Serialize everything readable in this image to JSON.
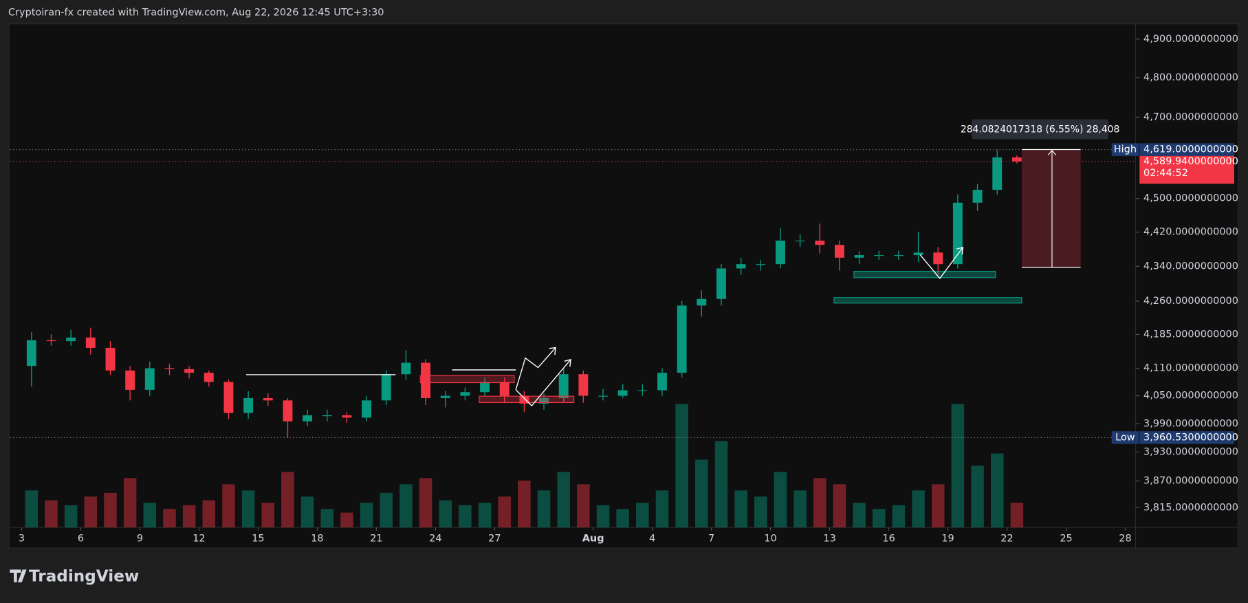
{
  "header": "Cryptoiran-fx created with TradingView.com, Aug 22, 2026 12:45 UTC+3:30",
  "logo": "TradingView",
  "chart_data": {
    "type": "candlestick",
    "log_scale": true,
    "up_color": "#089981",
    "down_color": "#f23645",
    "ylim": [
      3775,
      4940
    ],
    "yticks": [
      {
        "value": 4900,
        "label": "4,900.0000000000"
      },
      {
        "value": 4800,
        "label": "4,800.0000000000"
      },
      {
        "value": 4700,
        "label": "4,700.0000000000"
      },
      {
        "value": 4500,
        "label": "4,500.0000000000"
      },
      {
        "value": 4420,
        "label": "4,420.0000000000"
      },
      {
        "value": 4340,
        "label": "4,340.0000000000"
      },
      {
        "value": 4260,
        "label": "4,260.0000000000"
      },
      {
        "value": 4185,
        "label": "4,185.0000000000"
      },
      {
        "value": 4110,
        "label": "4,110.0000000000"
      },
      {
        "value": 4050,
        "label": "4,050.0000000000"
      },
      {
        "value": 3990,
        "label": "3,990.0000000000"
      },
      {
        "value": 3930,
        "label": "3,930.0000000000"
      },
      {
        "value": 3870,
        "label": "3,870.0000000000"
      },
      {
        "value": 3815,
        "label": "3,815.0000000000"
      }
    ],
    "xlim": [
      -0.6,
      56.44
    ],
    "xticks": [
      {
        "value": 0,
        "label": "3"
      },
      {
        "value": 3,
        "label": "6"
      },
      {
        "value": 6,
        "label": "9"
      },
      {
        "value": 9,
        "label": "12"
      },
      {
        "value": 12,
        "label": "15"
      },
      {
        "value": 15,
        "label": "18"
      },
      {
        "value": 18,
        "label": "21"
      },
      {
        "value": 21,
        "label": "24"
      },
      {
        "value": 24,
        "label": "27"
      },
      {
        "value": 29,
        "label": "Aug"
      },
      {
        "value": 32,
        "label": "4"
      },
      {
        "value": 35,
        "label": "7"
      },
      {
        "value": 38,
        "label": "10"
      },
      {
        "value": 41,
        "label": "13"
      },
      {
        "value": 44,
        "label": "16"
      },
      {
        "value": 47,
        "label": "19"
      },
      {
        "value": 50,
        "label": "22"
      },
      {
        "value": 53,
        "label": "25"
      },
      {
        "value": 56,
        "label": "28"
      }
    ],
    "x": [
      0.5,
      1.5,
      2.5,
      3.5,
      4.5,
      5.5,
      6.5,
      7.5,
      8.5,
      9.5,
      10.5,
      11.5,
      12.5,
      13.5,
      14.5,
      15.5,
      16.5,
      17.5,
      18.5,
      19.5,
      20.5,
      21.5,
      22.5,
      23.5,
      24.5,
      25.5,
      26.5,
      27.5,
      28.5,
      29.5,
      30.5,
      31.5,
      32.5,
      33.5,
      34.5,
      35.5,
      36.5,
      37.5,
      38.5,
      39.5,
      40.5,
      41.5,
      42.5,
      43.5,
      44.5,
      45.5,
      46.5,
      47.5,
      48.5,
      49.5,
      50.5
    ],
    "open": [
      4115,
      4172,
      4170,
      4178,
      4155,
      4105,
      4063,
      4110,
      4108,
      4100,
      4080,
      4013,
      4045,
      4040,
      3995,
      4008,
      4008,
      4003,
      4040,
      4097,
      4122,
      4045,
      4050,
      4058,
      4080,
      4050,
      4033,
      4045,
      4097,
      4050,
      4050,
      4062,
      4062,
      4100,
      4250,
      4265,
      4335,
      4345,
      4345,
      4400,
      4400,
      4390,
      4360,
      4366,
      4366,
      4366,
      4372,
      4345,
      4490,
      4521,
      4600
    ],
    "high": [
      4190,
      4185,
      4195,
      4200,
      4170,
      4115,
      4125,
      4120,
      4115,
      4105,
      4085,
      4060,
      4055,
      4045,
      4020,
      4020,
      4015,
      4050,
      4105,
      4150,
      4130,
      4060,
      4068,
      4090,
      4090,
      4060,
      4055,
      4110,
      4105,
      4065,
      4075,
      4075,
      4110,
      4260,
      4285,
      4345,
      4360,
      4355,
      4430,
      4415,
      4440,
      4400,
      4375,
      4376,
      4376,
      4420,
      4385,
      4510,
      4535,
      4619,
      4605
    ],
    "low": [
      4070,
      4160,
      4160,
      4140,
      4095,
      4040,
      4050,
      4095,
      4088,
      4070,
      4000,
      4000,
      4028,
      3960.53,
      3985,
      3995,
      3992,
      3995,
      4030,
      4085,
      4030,
      4025,
      4040,
      4050,
      4035,
      4015,
      4020,
      4035,
      4035,
      4040,
      4045,
      4050,
      4050,
      4090,
      4225,
      4250,
      4320,
      4330,
      4335,
      4385,
      4370,
      4330,
      4345,
      4355,
      4355,
      4350,
      4320,
      4335,
      4470,
      4510,
      4585
    ],
    "close": [
      4172,
      4170,
      4178,
      4155,
      4105,
      4063,
      4110,
      4108,
      4100,
      4080,
      4013,
      4045,
      4040,
      3995,
      4008,
      4008,
      4003,
      4040,
      4097,
      4122,
      4045,
      4050,
      4058,
      4080,
      4050,
      4033,
      4045,
      4097,
      4050,
      4050,
      4062,
      4062,
      4100,
      4250,
      4265,
      4335,
      4345,
      4345,
      4400,
      4400,
      4390,
      4360,
      4366,
      4366,
      4366,
      4372,
      4345,
      4490,
      4521,
      4600,
      4590
    ],
    "volume": [
      30,
      22,
      18,
      25,
      28,
      40,
      20,
      15,
      18,
      22,
      35,
      30,
      20,
      45,
      25,
      15,
      12,
      20,
      28,
      35,
      40,
      22,
      18,
      20,
      25,
      38,
      30,
      45,
      35,
      18,
      15,
      20,
      30,
      100,
      55,
      70,
      30,
      25,
      45,
      30,
      40,
      35,
      20,
      15,
      18,
      30,
      35,
      100,
      50,
      60,
      20
    ],
    "markers": {
      "high": {
        "label": "High",
        "value": 4619,
        "value_label": "4,619.0000000000"
      },
      "low": {
        "label": "Low",
        "value": 3960.53,
        "value_label": "3,960.5300000000"
      },
      "last": {
        "value": 4589.94,
        "value_label": "4,589.9400000000",
        "countdown": "02:44:52"
      }
    },
    "measure_label": "284.0824017318 (6.55%) 28,408"
  }
}
